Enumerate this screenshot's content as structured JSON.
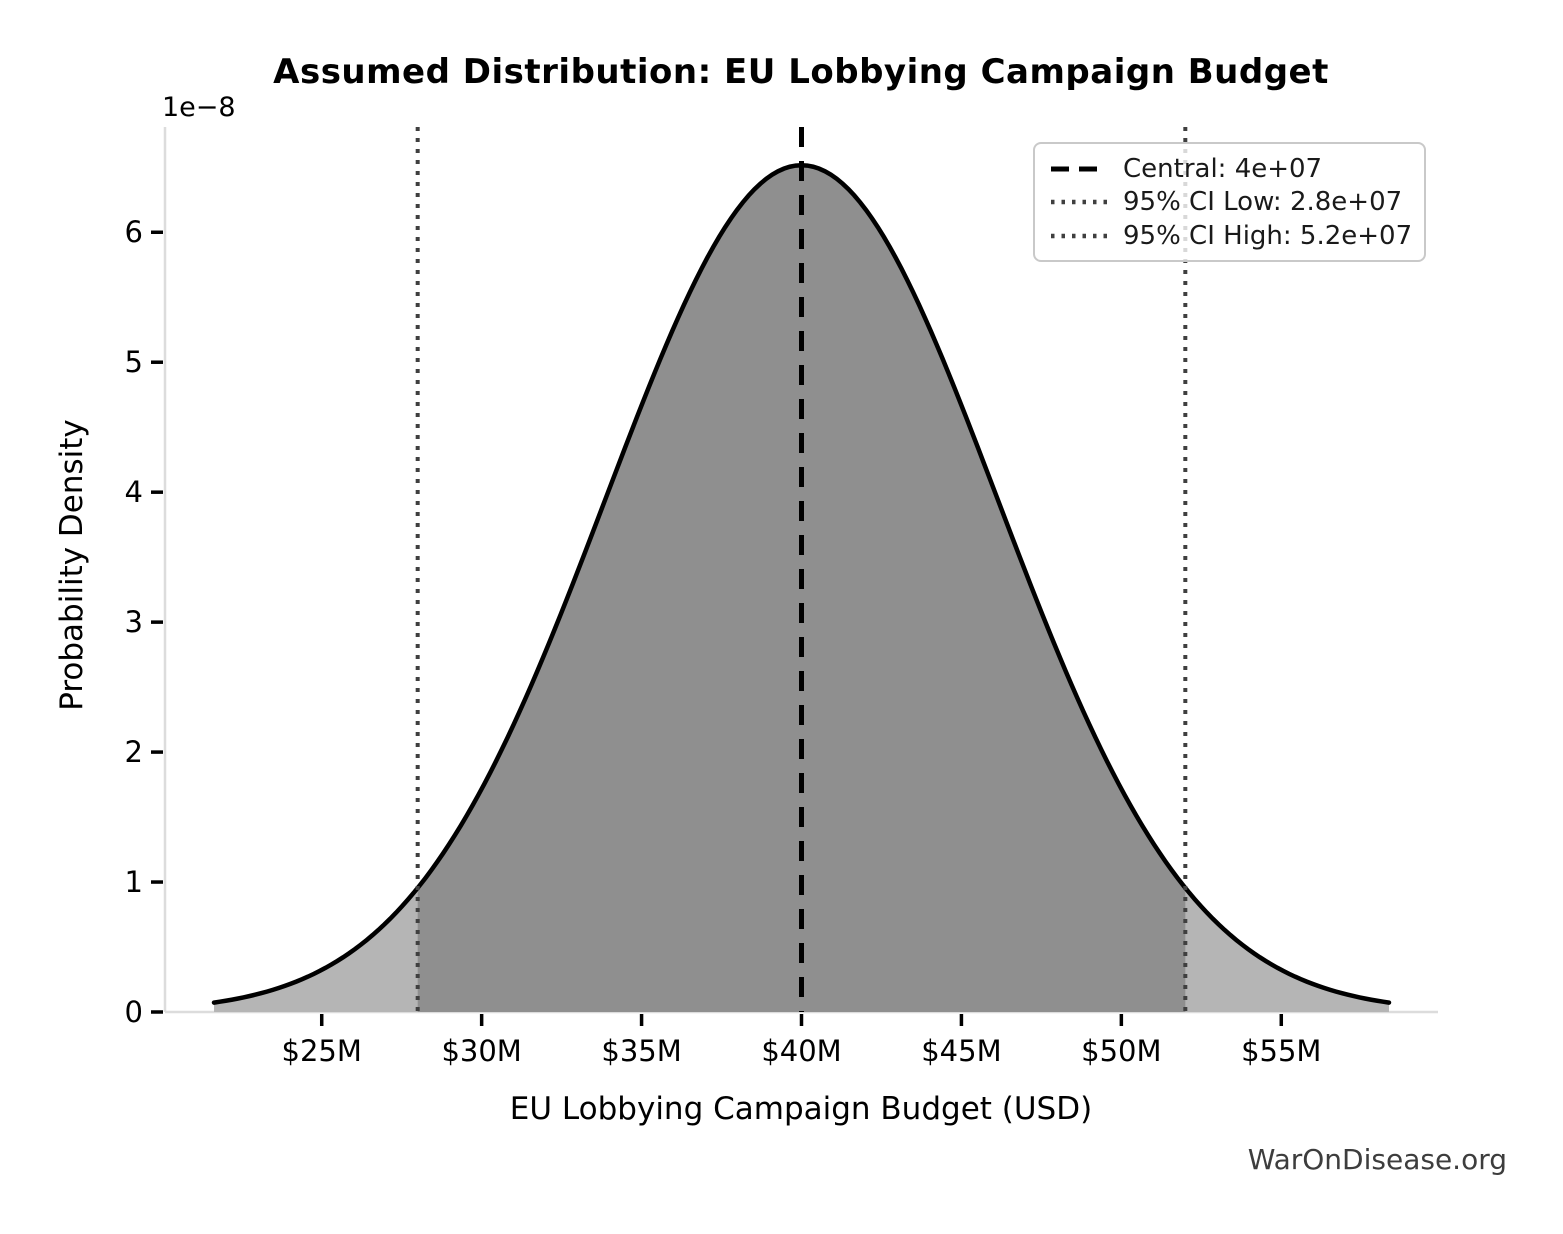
{
  "watermark": "WarOnDisease.org",
  "chart_data": {
    "type": "area",
    "title": "Assumed Distribution: EU Lobbying Campaign Budget",
    "xlabel": "EU Lobbying Campaign Budget (USD)",
    "ylabel": "Probability Density",
    "y_scale_offset_label": "1e−8",
    "distribution": {
      "shape": "normal",
      "central": 40000000,
      "ci95_low": 28000000,
      "ci95_high": 52000000,
      "sigma": 6122449,
      "peak_density": 6.52e-08,
      "curve_extent_sigmas": 3
    },
    "x_ticks": [
      {
        "value": 25000000,
        "label": "$25M"
      },
      {
        "value": 30000000,
        "label": "$30M"
      },
      {
        "value": 35000000,
        "label": "$35M"
      },
      {
        "value": 40000000,
        "label": "$40M"
      },
      {
        "value": 45000000,
        "label": "$45M"
      },
      {
        "value": 50000000,
        "label": "$50M"
      },
      {
        "value": 55000000,
        "label": "$55M"
      }
    ],
    "y_ticks": [
      {
        "value": 0,
        "label": "0"
      },
      {
        "value": 1e-08,
        "label": "1"
      },
      {
        "value": 2e-08,
        "label": "2"
      },
      {
        "value": 3e-08,
        "label": "3"
      },
      {
        "value": 4e-08,
        "label": "4"
      },
      {
        "value": 5e-08,
        "label": "5"
      },
      {
        "value": 6e-08,
        "label": "6"
      }
    ],
    "xlim": [
      20100000,
      59900000
    ],
    "ylim": [
      0,
      6.81e-08
    ],
    "grid": false,
    "legend": {
      "position": "upper right",
      "items": [
        {
          "label": "Central: 4e+07",
          "line_style": "dashed",
          "color": "#000000"
        },
        {
          "label": "95% CI Low: 2.8e+07",
          "line_style": "dotted",
          "color": "#3f3f3f"
        },
        {
          "label": "95% CI High: 5.2e+07",
          "line_style": "dotted",
          "color": "#3f3f3f"
        }
      ]
    },
    "colors": {
      "curve": "#000000",
      "fill_tails": "#b5b5b5",
      "fill_ci": "#8f8f8f",
      "spine": "#dcdcdc",
      "tick": "#000000",
      "central_line": "#000000",
      "ci_line": "#3f3f3f",
      "watermark": "#3d3d3d"
    }
  }
}
